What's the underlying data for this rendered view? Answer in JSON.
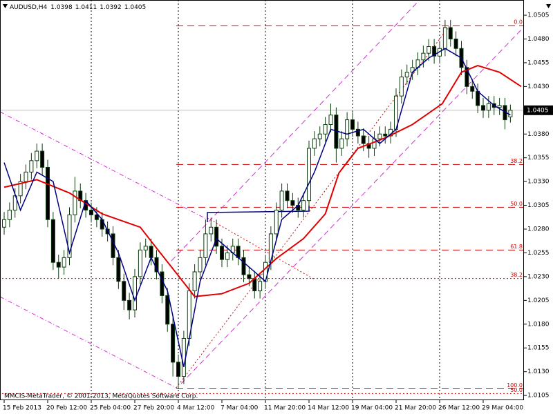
{
  "chart_data": {
    "type": "candlestick",
    "title": "AUDUSD,H4",
    "x": [
      "15 Feb 2013",
      null,
      null,
      null,
      null,
      null,
      null,
      null,
      "20 Feb 12:00",
      null,
      null,
      null,
      null,
      null,
      null,
      null,
      "25 Feb 04:00",
      null,
      null,
      null,
      null,
      null,
      null,
      null,
      "27 Feb 20:00",
      null,
      null,
      null,
      null,
      null,
      null,
      null,
      "4 Mar 12:00",
      null,
      null,
      null,
      null,
      null,
      null,
      null,
      "7 Mar 04:00",
      null,
      null,
      null,
      null,
      null,
      null,
      null,
      "11 Mar 20:00",
      null,
      null,
      null,
      null,
      null,
      null,
      null,
      "14 Mar 12:00",
      null,
      null,
      null,
      null,
      null,
      null,
      null,
      "19 Mar 04:00",
      null,
      null,
      null,
      null,
      null,
      null,
      null,
      "21 Mar 20:00",
      null,
      null,
      null,
      null,
      null,
      null,
      null,
      "26 Mar 12:00",
      null,
      null,
      null,
      null,
      null,
      null,
      null,
      "29 Mar 04:00",
      null,
      null,
      null,
      null,
      null
    ],
    "opens": [
      1.0282,
      1.029,
      1.03,
      1.0315,
      1.033,
      1.034,
      1.0352,
      1.0362,
      1.0345,
      1.029,
      1.0245,
      1.024,
      1.025,
      1.0295,
      1.032,
      1.031,
      1.03,
      1.0295,
      1.029,
      1.028,
      1.0275,
      1.025,
      1.0225,
      1.0205,
      1.0195,
      1.023,
      1.0258,
      1.0262,
      1.025,
      1.0235,
      1.021,
      1.018,
      1.014,
      1.0125,
      1.0165,
      1.0215,
      1.0235,
      1.025,
      1.0275,
      1.0282,
      1.0262,
      1.0248,
      1.0255,
      1.0262,
      1.025,
      1.0232,
      1.0228,
      1.0215,
      1.0225,
      1.0245,
      1.0275,
      1.03,
      1.032,
      1.031,
      1.0305,
      1.03,
      1.031,
      1.0365,
      1.0375,
      1.038,
      1.039,
      1.04,
      1.0365,
      1.0375,
      1.0395,
      1.0385,
      1.0378,
      1.037,
      1.0365,
      1.0375,
      1.038,
      1.0378,
      1.0385,
      1.042,
      1.044,
      1.0445,
      1.045,
      1.0458,
      1.0465,
      1.0472,
      1.0462,
      1.047,
      1.0492,
      1.048,
      1.047,
      1.045,
      1.043,
      1.0425,
      1.041,
      1.0405,
      1.0412,
      1.0408,
      1.041,
      1.0398
    ],
    "highs": [
      1.0298,
      1.0308,
      1.0323,
      1.0338,
      1.0348,
      1.036,
      1.037,
      1.037,
      1.0353,
      1.0298,
      1.0253,
      1.0258,
      1.0303,
      1.0335,
      1.0328,
      1.0318,
      1.0308,
      1.0303,
      1.0298,
      1.0288,
      1.0283,
      1.0258,
      1.0233,
      1.0213,
      1.0238,
      1.0266,
      1.027,
      1.027,
      1.0258,
      1.0243,
      1.0218,
      1.0188,
      1.0148,
      1.0173,
      1.0223,
      1.0243,
      1.0258,
      1.029,
      1.0292,
      1.029,
      1.027,
      1.0263,
      1.027,
      1.027,
      1.0258,
      1.024,
      1.0236,
      1.0233,
      1.0253,
      1.0283,
      1.0308,
      1.0328,
      1.0328,
      1.0318,
      1.0313,
      1.0318,
      1.0373,
      1.0383,
      1.0388,
      1.0398,
      1.0412,
      1.0408,
      1.0383,
      1.0403,
      1.0403,
      1.0393,
      1.0386,
      1.0378,
      1.0383,
      1.0388,
      1.0388,
      1.0393,
      1.0428,
      1.0448,
      1.0453,
      1.0458,
      1.0466,
      1.0473,
      1.048,
      1.048,
      1.0478,
      1.05,
      1.05,
      1.0488,
      1.0478,
      1.0458,
      1.0438,
      1.0433,
      1.0418,
      1.042,
      1.042,
      1.0418,
      1.0418,
      1.0411
    ],
    "lows": [
      1.0274,
      1.0282,
      1.0292,
      1.0307,
      1.0322,
      1.0332,
      1.0344,
      1.0337,
      1.0282,
      1.0237,
      1.0228,
      1.0232,
      1.0242,
      1.0287,
      1.0302,
      1.0292,
      1.0287,
      1.0282,
      1.0272,
      1.0267,
      1.0242,
      1.0217,
      1.0195,
      1.0185,
      1.0187,
      1.0222,
      1.025,
      1.0242,
      1.0227,
      1.0202,
      1.0172,
      1.0125,
      1.0112,
      1.0117,
      1.0157,
      1.0207,
      1.0227,
      1.0242,
      1.0267,
      1.0254,
      1.024,
      1.024,
      1.0247,
      1.0242,
      1.0224,
      1.022,
      1.0207,
      1.0207,
      1.0217,
      1.0237,
      1.0267,
      1.0292,
      1.0302,
      1.0297,
      1.0292,
      1.0292,
      1.0302,
      1.0357,
      1.0367,
      1.0372,
      1.0382,
      1.035,
      1.0357,
      1.0367,
      1.0377,
      1.037,
      1.0362,
      1.0355,
      1.0357,
      1.0367,
      1.037,
      1.037,
      1.0377,
      1.0412,
      1.0432,
      1.0437,
      1.0442,
      1.045,
      1.0457,
      1.0454,
      1.0454,
      1.0462,
      1.0472,
      1.0462,
      1.0442,
      1.0422,
      1.0417,
      1.0402,
      1.0397,
      1.0397,
      1.04,
      1.04,
      1.0385,
      1.0392
    ],
    "closes": [
      1.029,
      1.03,
      1.0315,
      1.033,
      1.034,
      1.0352,
      1.0362,
      1.0345,
      1.029,
      1.0245,
      1.024,
      1.025,
      1.0295,
      1.032,
      1.031,
      1.03,
      1.0295,
      1.029,
      1.028,
      1.0275,
      1.025,
      1.0225,
      1.0205,
      1.0195,
      1.023,
      1.0258,
      1.0262,
      1.025,
      1.0235,
      1.021,
      1.018,
      1.014,
      1.0125,
      1.0165,
      1.0215,
      1.0235,
      1.025,
      1.0275,
      1.0282,
      1.0262,
      1.0248,
      1.0255,
      1.0262,
      1.025,
      1.0232,
      1.0228,
      1.0215,
      1.0225,
      1.0245,
      1.0275,
      1.03,
      1.032,
      1.031,
      1.0305,
      1.03,
      1.031,
      1.0365,
      1.0375,
      1.038,
      1.039,
      1.04,
      1.0365,
      1.0375,
      1.0395,
      1.0385,
      1.0378,
      1.037,
      1.0365,
      1.0375,
      1.038,
      1.0378,
      1.0385,
      1.042,
      1.044,
      1.0445,
      1.045,
      1.0458,
      1.0465,
      1.0472,
      1.0462,
      1.047,
      1.0492,
      1.048,
      1.047,
      1.045,
      1.043,
      1.0425,
      1.041,
      1.0405,
      1.0412,
      1.0408,
      1.041,
      1.0395,
      1.0405
    ],
    "bull_color": "#ffffff",
    "bear_color": "#000000",
    "wick_color": "#0a3a0a",
    "moving_averages": [
      {
        "color": "#e00000",
        "x": [
          0,
          6,
          12,
          18,
          25,
          28,
          32,
          35,
          40,
          45,
          50,
          55,
          59,
          61.5,
          65,
          70,
          75,
          80.5,
          84,
          87,
          91,
          95
        ],
        "values": [
          1.0324,
          1.0332,
          1.0318,
          1.0296,
          1.0282,
          1.026,
          1.0231,
          1.0209,
          1.0212,
          1.0223,
          1.0249,
          1.027,
          1.0296,
          1.0339,
          1.0365,
          1.0376,
          1.039,
          1.0412,
          1.0445,
          1.0452,
          1.0445,
          1.043
        ]
      },
      {
        "color": "#00007f",
        "x": [
          0,
          3,
          6,
          9,
          12,
          15,
          18,
          21,
          24,
          27,
          30,
          33,
          36,
          39,
          42,
          45,
          48,
          51,
          54,
          57,
          60,
          63,
          66,
          69,
          72,
          75,
          78,
          81,
          84,
          87,
          90,
          93
        ],
        "values": [
          1.035,
          1.03,
          1.034,
          1.033,
          1.0255,
          1.031,
          1.029,
          1.0255,
          1.0205,
          1.025,
          1.0215,
          1.0135,
          1.0225,
          1.027,
          1.0255,
          1.024,
          1.0225,
          1.029,
          1.0305,
          1.034,
          1.0385,
          1.038,
          1.0385,
          1.037,
          1.0385,
          1.0445,
          1.046,
          1.047,
          1.046,
          1.0425,
          1.041,
          1.04
        ]
      }
    ],
    "fibonacci": [
      {
        "color": "#d00000",
        "style": "dashed",
        "start": 32,
        "levels": [
          {
            "value": 1.0494,
            "label": "0.0"
          },
          {
            "value": 1.0348,
            "label": "38.2"
          },
          {
            "value": 1.0303,
            "label": "50.0"
          },
          {
            "value": 1.0258,
            "label": "61.8"
          },
          {
            "value": 1.0112,
            "label": "100.0"
          }
        ]
      },
      {
        "color": "#d00000",
        "style": "dotted",
        "start": 0,
        "levels": [
          {
            "value": 1.0228,
            "label": "38.2"
          },
          {
            "value": 1.0107,
            "label": "50.0"
          }
        ]
      }
    ],
    "current_price": 1.0405,
    "ylim": [
      1.01,
      1.0521
    ],
    "yticks": [
      1.0505,
      {
        "value": 1.048,
        "label": "1.0480"
      },
      1.0455,
      {
        "value": 1.043,
        "label": "1.0430"
      },
      {
        "value": 1.038,
        "label": "1.0380"
      },
      1.0355,
      {
        "value": 1.033,
        "label": "1.0330"
      },
      1.0305,
      {
        "value": 1.028,
        "label": "1.0280"
      },
      1.0255,
      {
        "value": 1.023,
        "label": "1.0230"
      },
      1.0205,
      {
        "value": 1.018,
        "label": "1.0180"
      },
      1.0155,
      {
        "value": 1.013,
        "label": "1.0130"
      },
      1.0105
    ],
    "copyright": "MMCIS-MetaTrader, © 2001-2013, MetaQuotes Software Corp."
  }
}
